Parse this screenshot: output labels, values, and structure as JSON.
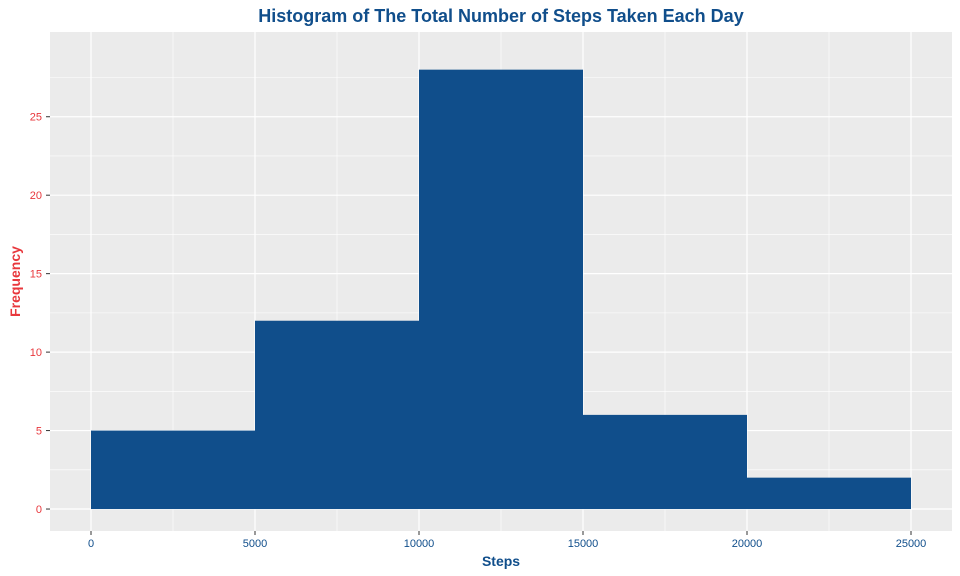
{
  "chart_data": {
    "type": "bar",
    "title": "Histogram of The Total Number of Steps Taken Each Day",
    "xlabel": "Steps",
    "ylabel": "Frequency",
    "bins": [
      {
        "x0": 0,
        "x1": 5000,
        "count": 5
      },
      {
        "x0": 5000,
        "x1": 10000,
        "count": 12
      },
      {
        "x0": 10000,
        "x1": 15000,
        "count": 28
      },
      {
        "x0": 15000,
        "x1": 20000,
        "count": 6
      },
      {
        "x0": 20000,
        "x1": 25000,
        "count": 2
      }
    ],
    "xlim": [
      -1250,
      26250
    ],
    "ylim": [
      -1.4,
      30.4
    ],
    "x_ticks": [
      0,
      5000,
      10000,
      15000,
      20000,
      25000
    ],
    "y_ticks": [
      0,
      5,
      10,
      15,
      20,
      25
    ],
    "x_tick_labels": [
      "0",
      "5000",
      "10000",
      "15000",
      "20000",
      "25000"
    ],
    "y_tick_labels": [
      "0",
      "5",
      "10",
      "15",
      "20",
      "25"
    ],
    "grid": true
  },
  "colors": {
    "bar_fill": "#104E8B",
    "panel_background": "#EBEBEB",
    "grid_line": "#FFFFFF",
    "title": "#104E8B",
    "x_axis_text": "#104E8B",
    "y_axis_text": "#E8373C",
    "tick_mark": "#333333"
  }
}
